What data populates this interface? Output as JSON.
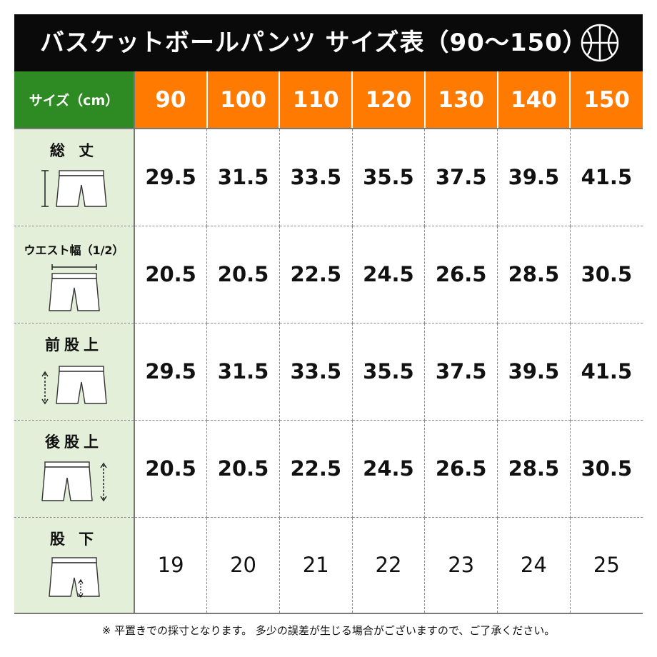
{
  "header": {
    "title": "バスケットボールパンツ サイズ表（90〜150）",
    "icon": "basketball-icon"
  },
  "table": {
    "corner_label": "サイズ（cm）",
    "sizes": [
      "90",
      "100",
      "110",
      "120",
      "130",
      "140",
      "150"
    ],
    "rows": [
      {
        "label": "総 丈",
        "icon": "pants-total-length-icon",
        "values": [
          "29.5",
          "31.5",
          "33.5",
          "35.5",
          "37.5",
          "39.5",
          "41.5"
        ]
      },
      {
        "label": "ウエスト幅（1/2）",
        "icon": "pants-waist-width-icon",
        "values": [
          "20.5",
          "20.5",
          "22.5",
          "24.5",
          "26.5",
          "28.5",
          "30.5"
        ]
      },
      {
        "label": "前股上",
        "icon": "pants-front-rise-icon",
        "values": [
          "29.5",
          "31.5",
          "33.5",
          "35.5",
          "37.5",
          "39.5",
          "41.5"
        ]
      },
      {
        "label": "後股上",
        "icon": "pants-back-rise-icon",
        "values": [
          "20.5",
          "20.5",
          "22.5",
          "24.5",
          "26.5",
          "28.5",
          "30.5"
        ]
      },
      {
        "label": "股 下",
        "icon": "pants-inseam-icon",
        "values": [
          "19",
          "20",
          "21",
          "22",
          "23",
          "24",
          "25"
        ]
      }
    ]
  },
  "footnote": "※ 平置きでの採寸となります。 多少の誤差が生じる場合がございますので、ご了承ください。",
  "colors": {
    "header_bg": "#0a0a0a",
    "corner_bg": "#2e8b24",
    "size_header_bg": "#ff7a00",
    "label_bg": "#e3efd9"
  }
}
